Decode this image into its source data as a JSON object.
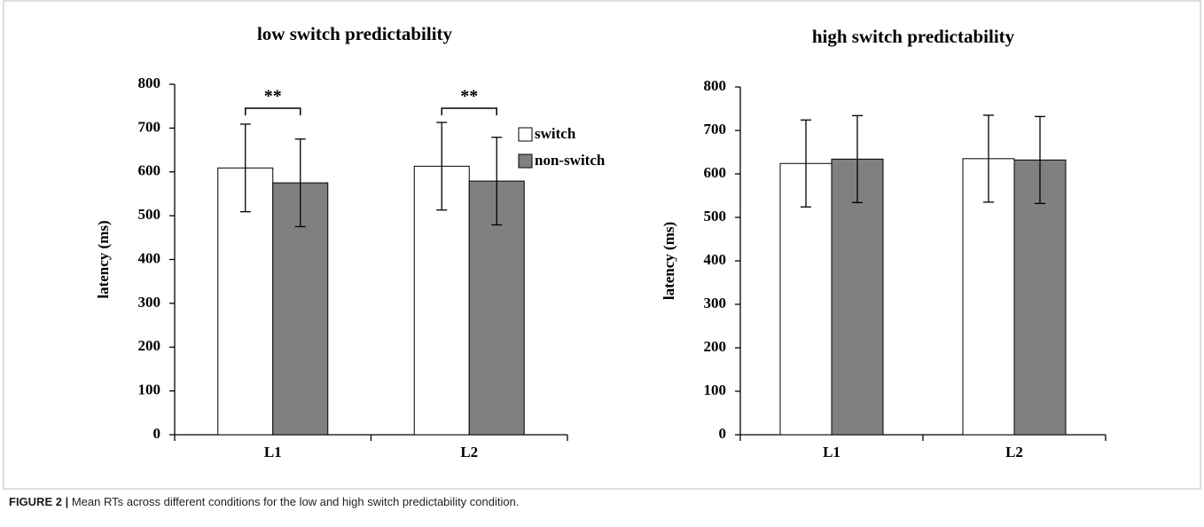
{
  "chart_data": [
    {
      "type": "bar",
      "title": "low switch predictability",
      "ylabel": "latency (ms)",
      "categories": [
        "L1",
        "L2"
      ],
      "series": [
        {
          "name": "switch",
          "color": "#ffffff",
          "values": [
            609,
            613
          ],
          "errors": [
            100,
            100
          ]
        },
        {
          "name": "non-switch",
          "color": "#808080",
          "values": [
            575,
            579
          ],
          "errors": [
            100,
            100
          ]
        }
      ],
      "ylim": [
        0,
        800
      ],
      "yticks": [
        0,
        100,
        200,
        300,
        400,
        500,
        600,
        700,
        800
      ],
      "legend": "upper right",
      "annotations": [
        "**",
        "**"
      ]
    },
    {
      "type": "bar",
      "title": "high switch predictability",
      "ylabel": "latency (ms)",
      "categories": [
        "L1",
        "L2"
      ],
      "series": [
        {
          "name": "switch",
          "color": "#ffffff",
          "values": [
            624,
            635
          ],
          "errors": [
            100,
            100
          ]
        },
        {
          "name": "non-switch",
          "color": "#808080",
          "values": [
            634,
            632
          ],
          "errors": [
            100,
            100
          ]
        }
      ],
      "ylim": [
        0,
        800
      ],
      "yticks": [
        0,
        100,
        200,
        300,
        400,
        500,
        600,
        700,
        800
      ]
    }
  ],
  "caption": {
    "label": "FIGURE 2 |",
    "text": "Mean RTs across different conditions for the low and high switch predictability condition."
  }
}
